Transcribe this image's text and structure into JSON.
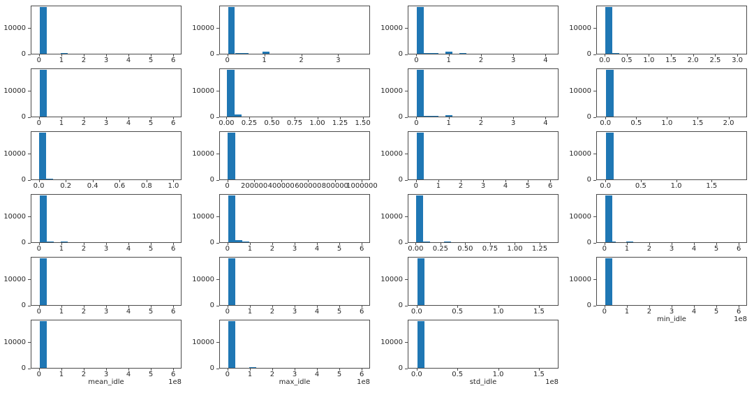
{
  "figure": {
    "background": "#ffffff",
    "bar_color": "#1f77b4",
    "axis_color": "#4a4a4a",
    "text_color": "#262626",
    "ylim": [
      0,
      18700
    ],
    "yticks": [
      {
        "v": 0,
        "label": "0"
      },
      {
        "v": 10000,
        "label": "10000"
      }
    ],
    "grid": {
      "rows": 6,
      "cols": 4
    }
  },
  "chart_data": [
    {
      "row": 1,
      "col": 1,
      "type": "histogram",
      "xlim": [
        -0.37,
        6.37
      ],
      "xticks": [
        {
          "v": 0,
          "label": "0"
        },
        {
          "v": 1,
          "label": "1"
        },
        {
          "v": 2,
          "label": "2"
        },
        {
          "v": 3,
          "label": "3"
        },
        {
          "v": 4,
          "label": "4"
        },
        {
          "v": 5,
          "label": "5"
        },
        {
          "v": 6,
          "label": "6"
        }
      ],
      "bars": [
        [
          0,
          0.32,
          17800
        ],
        [
          0.96,
          1.28,
          350
        ]
      ],
      "xlabel": null,
      "offset_text": null
    },
    {
      "row": 1,
      "col": 2,
      "type": "histogram",
      "xlim": [
        -0.22,
        3.86
      ],
      "xticks": [
        {
          "v": 0,
          "label": "0"
        },
        {
          "v": 1,
          "label": "1"
        },
        {
          "v": 2,
          "label": "2"
        },
        {
          "v": 3,
          "label": "3"
        }
      ],
      "bars": [
        [
          0,
          0.19,
          17800
        ],
        [
          0.19,
          0.57,
          250
        ],
        [
          0.95,
          1.14,
          900
        ]
      ],
      "xlabel": null,
      "offset_text": null
    },
    {
      "row": 1,
      "col": 3,
      "type": "histogram",
      "xlim": [
        -0.27,
        4.4
      ],
      "xticks": [
        {
          "v": 0,
          "label": "0"
        },
        {
          "v": 1,
          "label": "1"
        },
        {
          "v": 2,
          "label": "2"
        },
        {
          "v": 3,
          "label": "3"
        },
        {
          "v": 4,
          "label": "4"
        }
      ],
      "bars": [
        [
          0,
          0.22,
          17800
        ],
        [
          0.22,
          0.66,
          300
        ],
        [
          0.88,
          1.1,
          850
        ],
        [
          1.32,
          1.54,
          400
        ]
      ],
      "xlabel": null,
      "offset_text": null
    },
    {
      "row": 1,
      "col": 4,
      "type": "histogram",
      "xlim": [
        -0.19,
        3.22
      ],
      "xticks": [
        {
          "v": 0,
          "label": "0.0"
        },
        {
          "v": 0.5,
          "label": "0.5"
        },
        {
          "v": 1,
          "label": "1.0"
        },
        {
          "v": 1.5,
          "label": "1.5"
        },
        {
          "v": 2,
          "label": "2.0"
        },
        {
          "v": 2.5,
          "label": "2.5"
        },
        {
          "v": 3,
          "label": "3.0"
        }
      ],
      "bars": [
        [
          0,
          0.16,
          17800
        ],
        [
          0.16,
          0.32,
          300
        ]
      ],
      "xlabel": null,
      "offset_text": null
    },
    {
      "row": 2,
      "col": 1,
      "type": "histogram",
      "xlim": [
        -0.37,
        6.37
      ],
      "xticks": [
        {
          "v": 0,
          "label": "0"
        },
        {
          "v": 1,
          "label": "1"
        },
        {
          "v": 2,
          "label": "2"
        },
        {
          "v": 3,
          "label": "3"
        },
        {
          "v": 4,
          "label": "4"
        },
        {
          "v": 5,
          "label": "5"
        },
        {
          "v": 6,
          "label": "6"
        }
      ],
      "bars": [
        [
          0,
          0.32,
          17800
        ]
      ],
      "xlabel": null,
      "offset_text": null
    },
    {
      "row": 2,
      "col": 2,
      "type": "histogram",
      "xlim": [
        -0.08,
        1.58
      ],
      "xticks": [
        {
          "v": 0,
          "label": "0.00"
        },
        {
          "v": 0.25,
          "label": "0.25"
        },
        {
          "v": 0.5,
          "label": "0.50"
        },
        {
          "v": 0.75,
          "label": "0.75"
        },
        {
          "v": 1,
          "label": "1.00"
        },
        {
          "v": 1.25,
          "label": "1.25"
        },
        {
          "v": 1.5,
          "label": "1.50"
        }
      ],
      "bars": [
        [
          0,
          0.08,
          17800
        ],
        [
          0.08,
          0.16,
          800
        ]
      ],
      "xlabel": null,
      "offset_text": null
    },
    {
      "row": 2,
      "col": 3,
      "type": "histogram",
      "xlim": [
        -0.27,
        4.4
      ],
      "xticks": [
        {
          "v": 0,
          "label": "0"
        },
        {
          "v": 1,
          "label": "1"
        },
        {
          "v": 2,
          "label": "2"
        },
        {
          "v": 3,
          "label": "3"
        },
        {
          "v": 4,
          "label": "4"
        }
      ],
      "bars": [
        [
          0,
          0.22,
          17800
        ],
        [
          0.22,
          0.44,
          400
        ],
        [
          0.44,
          0.66,
          250
        ],
        [
          0.88,
          1.1,
          600
        ]
      ],
      "xlabel": null,
      "offset_text": null
    },
    {
      "row": 2,
      "col": 4,
      "type": "histogram",
      "xlim": [
        -0.15,
        2.3
      ],
      "xticks": [
        {
          "v": 0,
          "label": "0.0"
        },
        {
          "v": 0.5,
          "label": "0.5"
        },
        {
          "v": 1,
          "label": "1.0"
        },
        {
          "v": 1.5,
          "label": "1.5"
        },
        {
          "v": 2,
          "label": "2.0"
        }
      ],
      "bars": [
        [
          0,
          0.12,
          17800
        ]
      ],
      "xlabel": null,
      "offset_text": null
    },
    {
      "row": 3,
      "col": 1,
      "type": "histogram",
      "xlim": [
        -0.06,
        1.06
      ],
      "xticks": [
        {
          "v": 0,
          "label": "0.0"
        },
        {
          "v": 0.2,
          "label": "0.2"
        },
        {
          "v": 0.4,
          "label": "0.4"
        },
        {
          "v": 0.6,
          "label": "0.6"
        },
        {
          "v": 0.8,
          "label": "0.8"
        },
        {
          "v": 1,
          "label": "1.0"
        }
      ],
      "bars": [
        [
          0,
          0.05,
          17800
        ],
        [
          0.05,
          0.1,
          300
        ]
      ],
      "xlabel": null,
      "offset_text": null
    },
    {
      "row": 3,
      "col": 2,
      "type": "histogram",
      "xlim": [
        -60000,
        1060000
      ],
      "xticks": [
        {
          "v": 0,
          "label": "0"
        },
        {
          "v": 200000,
          "label": "200000"
        },
        {
          "v": 400000,
          "label": "400000"
        },
        {
          "v": 600000,
          "label": "600000"
        },
        {
          "v": 800000,
          "label": "800000"
        },
        {
          "v": 1000000,
          "label": "1000000"
        }
      ],
      "bars": [
        [
          0,
          53000,
          17800
        ]
      ],
      "xlabel": null,
      "offset_text": null
    },
    {
      "row": 3,
      "col": 3,
      "type": "histogram",
      "xlim": [
        -0.37,
        6.37
      ],
      "xticks": [
        {
          "v": 0,
          "label": "0"
        },
        {
          "v": 1,
          "label": "1"
        },
        {
          "v": 2,
          "label": "2"
        },
        {
          "v": 3,
          "label": "3"
        },
        {
          "v": 4,
          "label": "4"
        },
        {
          "v": 5,
          "label": "5"
        },
        {
          "v": 6,
          "label": "6"
        }
      ],
      "bars": [
        [
          0,
          0.32,
          17800
        ]
      ],
      "xlabel": null,
      "offset_text": null
    },
    {
      "row": 3,
      "col": 4,
      "type": "histogram",
      "xlim": [
        -0.13,
        2.0
      ],
      "xticks": [
        {
          "v": 0,
          "label": "0.0"
        },
        {
          "v": 0.5,
          "label": "0.5"
        },
        {
          "v": 1,
          "label": "1.0"
        },
        {
          "v": 1.5,
          "label": "1.5"
        }
      ],
      "bars": [
        [
          0,
          0.11,
          17800
        ]
      ],
      "xlabel": null,
      "offset_text": null
    },
    {
      "row": 4,
      "col": 1,
      "type": "histogram",
      "xlim": [
        -0.37,
        6.37
      ],
      "xticks": [
        {
          "v": 0,
          "label": "0"
        },
        {
          "v": 1,
          "label": "1"
        },
        {
          "v": 2,
          "label": "2"
        },
        {
          "v": 3,
          "label": "3"
        },
        {
          "v": 4,
          "label": "4"
        },
        {
          "v": 5,
          "label": "5"
        },
        {
          "v": 6,
          "label": "6"
        }
      ],
      "bars": [
        [
          0,
          0.32,
          17800
        ],
        [
          0.32,
          0.64,
          250
        ],
        [
          0.96,
          1.28,
          400
        ]
      ],
      "xlabel": null,
      "offset_text": null
    },
    {
      "row": 4,
      "col": 2,
      "type": "histogram",
      "xlim": [
        -0.37,
        6.37
      ],
      "xticks": [
        {
          "v": 0,
          "label": "0"
        },
        {
          "v": 1,
          "label": "1"
        },
        {
          "v": 2,
          "label": "2"
        },
        {
          "v": 3,
          "label": "3"
        },
        {
          "v": 4,
          "label": "4"
        },
        {
          "v": 5,
          "label": "5"
        },
        {
          "v": 6,
          "label": "6"
        }
      ],
      "bars": [
        [
          0,
          0.32,
          17800
        ],
        [
          0.32,
          0.64,
          800
        ],
        [
          0.64,
          0.96,
          300
        ]
      ],
      "xlabel": null,
      "offset_text": null
    },
    {
      "row": 4,
      "col": 3,
      "type": "histogram",
      "xlim": [
        -0.08,
        1.44
      ],
      "xticks": [
        {
          "v": 0,
          "label": "0.00"
        },
        {
          "v": 0.25,
          "label": "0.25"
        },
        {
          "v": 0.5,
          "label": "0.50"
        },
        {
          "v": 0.75,
          "label": "0.75"
        },
        {
          "v": 1,
          "label": "1.00"
        },
        {
          "v": 1.25,
          "label": "1.25"
        }
      ],
      "bars": [
        [
          0,
          0.07,
          17800
        ],
        [
          0.07,
          0.14,
          250
        ],
        [
          0.28,
          0.35,
          400
        ]
      ],
      "xlabel": null,
      "offset_text": null
    },
    {
      "row": 4,
      "col": 4,
      "type": "histogram",
      "xlim": [
        -0.37,
        6.37
      ],
      "xticks": [
        {
          "v": 0,
          "label": "0"
        },
        {
          "v": 1,
          "label": "1"
        },
        {
          "v": 2,
          "label": "2"
        },
        {
          "v": 3,
          "label": "3"
        },
        {
          "v": 4,
          "label": "4"
        },
        {
          "v": 5,
          "label": "5"
        },
        {
          "v": 6,
          "label": "6"
        }
      ],
      "bars": [
        [
          0,
          0.32,
          17800
        ],
        [
          0.32,
          0.48,
          250
        ],
        [
          0.96,
          1.28,
          350
        ]
      ],
      "xlabel": null,
      "offset_text": null
    },
    {
      "row": 5,
      "col": 1,
      "type": "histogram",
      "xlim": [
        -0.37,
        6.37
      ],
      "xticks": [
        {
          "v": 0,
          "label": "0"
        },
        {
          "v": 1,
          "label": "1"
        },
        {
          "v": 2,
          "label": "2"
        },
        {
          "v": 3,
          "label": "3"
        },
        {
          "v": 4,
          "label": "4"
        },
        {
          "v": 5,
          "label": "5"
        },
        {
          "v": 6,
          "label": "6"
        }
      ],
      "bars": [
        [
          0,
          0.32,
          17800
        ]
      ],
      "xlabel": null,
      "offset_text": null
    },
    {
      "row": 5,
      "col": 2,
      "type": "histogram",
      "xlim": [
        -0.37,
        6.37
      ],
      "xticks": [
        {
          "v": 0,
          "label": "0"
        },
        {
          "v": 1,
          "label": "1"
        },
        {
          "v": 2,
          "label": "2"
        },
        {
          "v": 3,
          "label": "3"
        },
        {
          "v": 4,
          "label": "4"
        },
        {
          "v": 5,
          "label": "5"
        },
        {
          "v": 6,
          "label": "6"
        }
      ],
      "bars": [
        [
          0,
          0.32,
          17800
        ]
      ],
      "xlabel": null,
      "offset_text": null
    },
    {
      "row": 5,
      "col": 3,
      "type": "histogram",
      "xlim": [
        -0.11,
        1.74
      ],
      "xticks": [
        {
          "v": 0,
          "label": "0.0"
        },
        {
          "v": 0.5,
          "label": "0.5"
        },
        {
          "v": 1,
          "label": "1.0"
        },
        {
          "v": 1.5,
          "label": "1.5"
        }
      ],
      "bars": [
        [
          0,
          0.09,
          17800
        ]
      ],
      "xlabel": null,
      "offset_text": null
    },
    {
      "row": 5,
      "col": 4,
      "type": "histogram",
      "xlim": [
        -0.37,
        6.37
      ],
      "xticks": [
        {
          "v": 0,
          "label": "0"
        },
        {
          "v": 1,
          "label": "1"
        },
        {
          "v": 2,
          "label": "2"
        },
        {
          "v": 3,
          "label": "3"
        },
        {
          "v": 4,
          "label": "4"
        },
        {
          "v": 5,
          "label": "5"
        },
        {
          "v": 6,
          "label": "6"
        }
      ],
      "bars": [
        [
          0,
          0.32,
          17800
        ]
      ],
      "xlabel": "min_idle",
      "offset_text": "1e8"
    },
    {
      "row": 6,
      "col": 1,
      "type": "histogram",
      "xlim": [
        -0.37,
        6.37
      ],
      "xticks": [
        {
          "v": 0,
          "label": "0"
        },
        {
          "v": 1,
          "label": "1"
        },
        {
          "v": 2,
          "label": "2"
        },
        {
          "v": 3,
          "label": "3"
        },
        {
          "v": 4,
          "label": "4"
        },
        {
          "v": 5,
          "label": "5"
        },
        {
          "v": 6,
          "label": "6"
        }
      ],
      "bars": [
        [
          0,
          0.32,
          17800
        ]
      ],
      "xlabel": "mean_idle",
      "offset_text": "1e8"
    },
    {
      "row": 6,
      "col": 2,
      "type": "histogram",
      "xlim": [
        -0.37,
        6.37
      ],
      "xticks": [
        {
          "v": 0,
          "label": "0"
        },
        {
          "v": 1,
          "label": "1"
        },
        {
          "v": 2,
          "label": "2"
        },
        {
          "v": 3,
          "label": "3"
        },
        {
          "v": 4,
          "label": "4"
        },
        {
          "v": 5,
          "label": "5"
        },
        {
          "v": 6,
          "label": "6"
        }
      ],
      "bars": [
        [
          0,
          0.32,
          17800
        ],
        [
          0.96,
          1.28,
          300
        ]
      ],
      "xlabel": "max_idle",
      "offset_text": "1e8"
    },
    {
      "row": 6,
      "col": 3,
      "type": "histogram",
      "xlim": [
        -0.11,
        1.74
      ],
      "xticks": [
        {
          "v": 0,
          "label": "0.0"
        },
        {
          "v": 0.5,
          "label": "0.5"
        },
        {
          "v": 1,
          "label": "1.0"
        },
        {
          "v": 1.5,
          "label": "1.5"
        }
      ],
      "bars": [
        [
          0,
          0.09,
          17800
        ]
      ],
      "xlabel": "std_idle",
      "offset_text": "1e8"
    }
  ]
}
